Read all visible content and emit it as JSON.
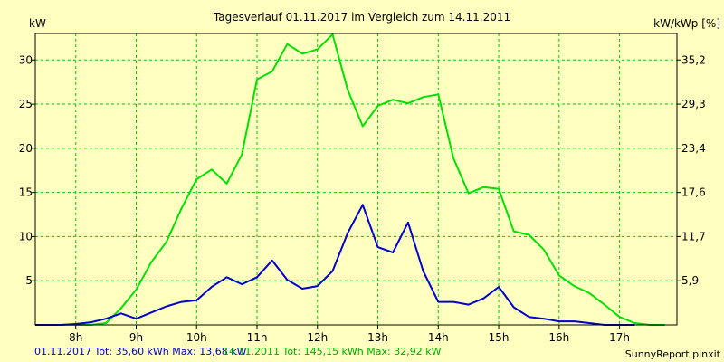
{
  "chart_data": {
    "type": "line",
    "title": "Tagesverlauf 01.11.2017 im Vergleich zum 14.11.2011",
    "ylabel_left": "kW",
    "ylabel_right": "kW/kWp [%]",
    "xlim": [
      7.33,
      17.95
    ],
    "ylim": [
      0,
      33
    ],
    "grid": true,
    "x_ticks": [
      8,
      9,
      10,
      11,
      12,
      13,
      14,
      15,
      16,
      17
    ],
    "x_tick_labels": [
      "8h",
      "9h",
      "10h",
      "11h",
      "12h",
      "13h",
      "14h",
      "15h",
      "16h",
      "17h"
    ],
    "y_ticks_left": [
      5,
      10,
      15,
      20,
      25,
      30
    ],
    "y_tick_labels_left": [
      "5",
      "10",
      "15",
      "20",
      "25",
      "30"
    ],
    "y_ticks_right_positions": [
      5,
      10,
      15,
      20,
      25,
      30
    ],
    "y_tick_labels_right": [
      "5,9",
      "11,7",
      "17,6",
      "23,4",
      "29,3",
      "35,2"
    ],
    "series": [
      {
        "name": "01.11.2017",
        "color": "#0000cc",
        "x": [
          7.33,
          7.5,
          7.75,
          8.0,
          8.25,
          8.5,
          8.75,
          9.0,
          9.25,
          9.5,
          9.75,
          10.0,
          10.25,
          10.5,
          10.75,
          11.0,
          11.25,
          11.5,
          11.75,
          12.0,
          12.25,
          12.5,
          12.75,
          13.0,
          13.25,
          13.5,
          13.75,
          14.0,
          14.25,
          14.5,
          14.75,
          15.0,
          15.25,
          15.5,
          15.75,
          16.0,
          16.25,
          16.5,
          16.75,
          17.0,
          17.25
        ],
        "y": [
          0.0,
          0.0,
          0.0,
          0.1,
          0.3,
          0.7,
          1.3,
          0.7,
          1.4,
          2.1,
          2.6,
          2.8,
          4.3,
          5.4,
          4.6,
          5.4,
          7.3,
          5.1,
          4.1,
          4.4,
          6.1,
          10.4,
          13.6,
          8.8,
          8.2,
          11.6,
          6.1,
          2.6,
          2.6,
          2.3,
          3.0,
          4.3,
          2.0,
          0.9,
          0.7,
          0.4,
          0.4,
          0.2,
          0.0,
          0.0,
          0.0
        ]
      },
      {
        "name": "14.11.2011",
        "color": "#00e000",
        "x": [
          7.33,
          7.5,
          7.75,
          8.0,
          8.25,
          8.5,
          8.75,
          9.0,
          9.25,
          9.5,
          9.75,
          10.0,
          10.25,
          10.5,
          10.75,
          11.0,
          11.25,
          11.5,
          11.75,
          12.0,
          12.25,
          12.5,
          12.75,
          13.0,
          13.25,
          13.5,
          13.75,
          14.0,
          14.25,
          14.5,
          14.75,
          15.0,
          15.25,
          15.5,
          15.75,
          16.0,
          16.25,
          16.5,
          16.75,
          17.0,
          17.25,
          17.5,
          17.75
        ],
        "y": [
          0.0,
          0.0,
          0.0,
          0.0,
          0.0,
          0.2,
          1.9,
          4.0,
          7.1,
          9.4,
          13.2,
          16.5,
          17.6,
          16.0,
          19.3,
          27.8,
          28.7,
          31.8,
          30.7,
          31.2,
          32.9,
          26.6,
          22.5,
          24.8,
          25.5,
          25.1,
          25.8,
          26.1,
          18.9,
          14.9,
          15.6,
          15.4,
          10.6,
          10.2,
          8.5,
          5.6,
          4.4,
          3.6,
          2.3,
          0.9,
          0.2,
          0.0,
          0.0
        ]
      }
    ]
  },
  "footer": {
    "series1_text": "01.11.2017 Tot: 35,60 kWh Max: 13,68 kW",
    "series2_text": "14.11.2011 Tot: 145,15 kWh Max: 32,92 kW",
    "brand": "SunnyReport pinxit"
  }
}
